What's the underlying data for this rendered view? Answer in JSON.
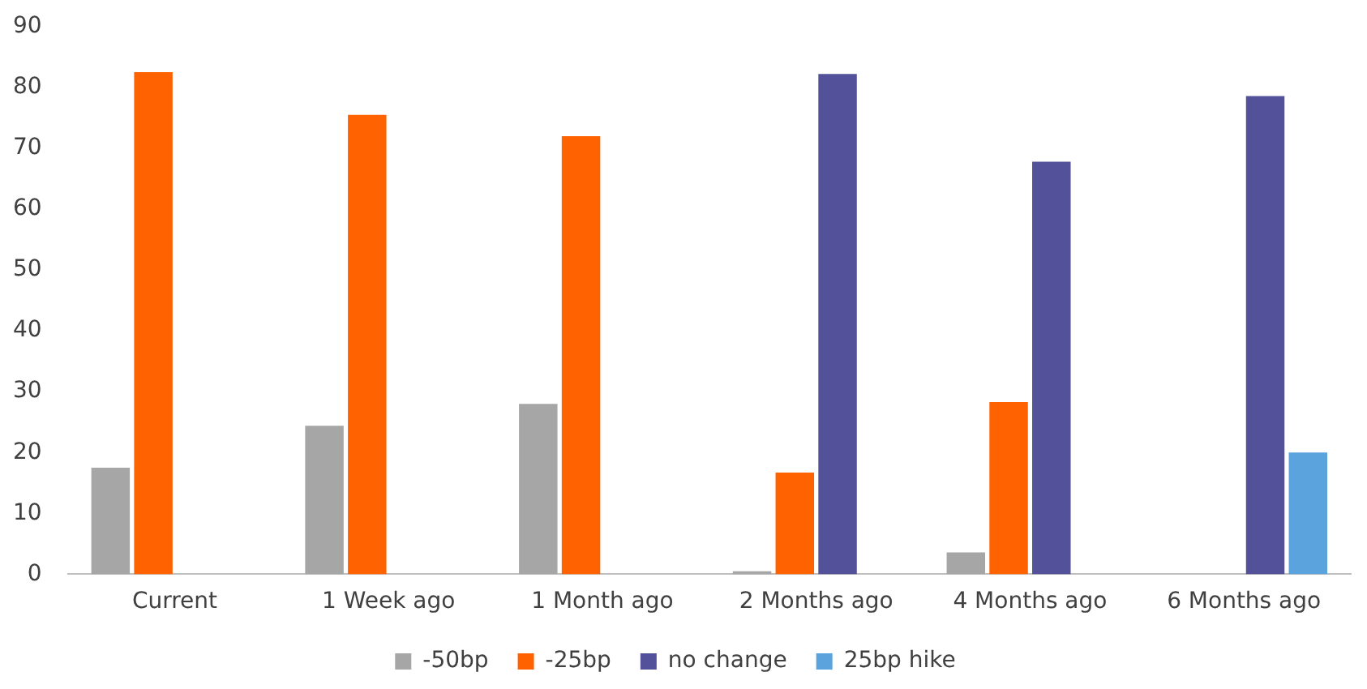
{
  "chart_data": {
    "type": "bar",
    "categories": [
      "Current",
      "1 Week ago",
      "1 Month ago",
      "2 Months ago",
      "4 Months ago",
      "6 Months ago"
    ],
    "series": [
      {
        "name": "-50bp",
        "color": "#a6a6a6",
        "values": [
          17.5,
          24.4,
          28,
          0.5,
          3.6,
          0
        ]
      },
      {
        "name": "-25bp",
        "color": "#ff6200",
        "values": [
          82.5,
          75.5,
          72,
          16.7,
          28.3,
          0
        ]
      },
      {
        "name": "no change",
        "color": "#525199",
        "values": [
          0,
          0,
          0,
          82.2,
          67.8,
          78.6
        ]
      },
      {
        "name": "25bp hike",
        "color": "#5ba3dc",
        "values": [
          0,
          0,
          0,
          0,
          0,
          20
        ]
      }
    ],
    "ylim": [
      0,
      90
    ],
    "yticks": [
      0,
      10,
      20,
      30,
      40,
      50,
      60,
      70,
      80,
      90
    ],
    "grid": false,
    "legend": "bottom"
  }
}
